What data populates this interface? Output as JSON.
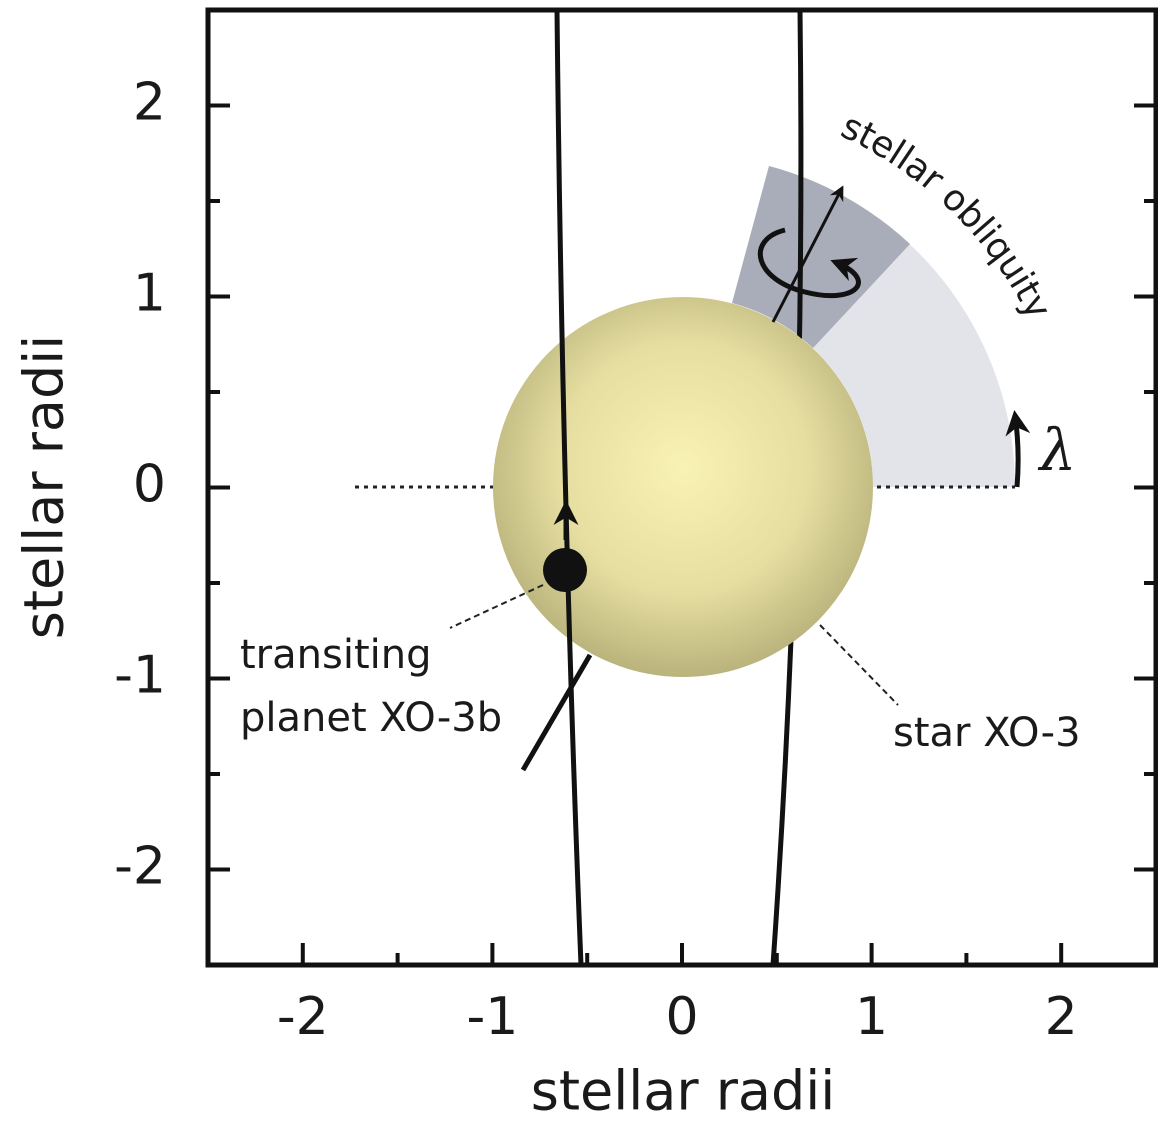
{
  "chart_data": {
    "type": "diagram",
    "xlabel": "stellar radii",
    "ylabel": "stellar radii",
    "xlim": [
      -2.5,
      2.5
    ],
    "ylim": [
      -2.5,
      2.5
    ],
    "xticks": [
      -2,
      -1,
      0,
      1,
      2
    ],
    "yticks": [
      -2,
      -1,
      0,
      1,
      2
    ],
    "xticks_minor": [
      -1.5,
      -0.5,
      0.5,
      1.5
    ],
    "yticks_minor": [
      -1.5,
      -0.5,
      0.5,
      1.5
    ],
    "annotations": [
      "stellar obliquity",
      "λ",
      "transiting",
      "planet XO-3b",
      "star XO-3"
    ]
  }
}
